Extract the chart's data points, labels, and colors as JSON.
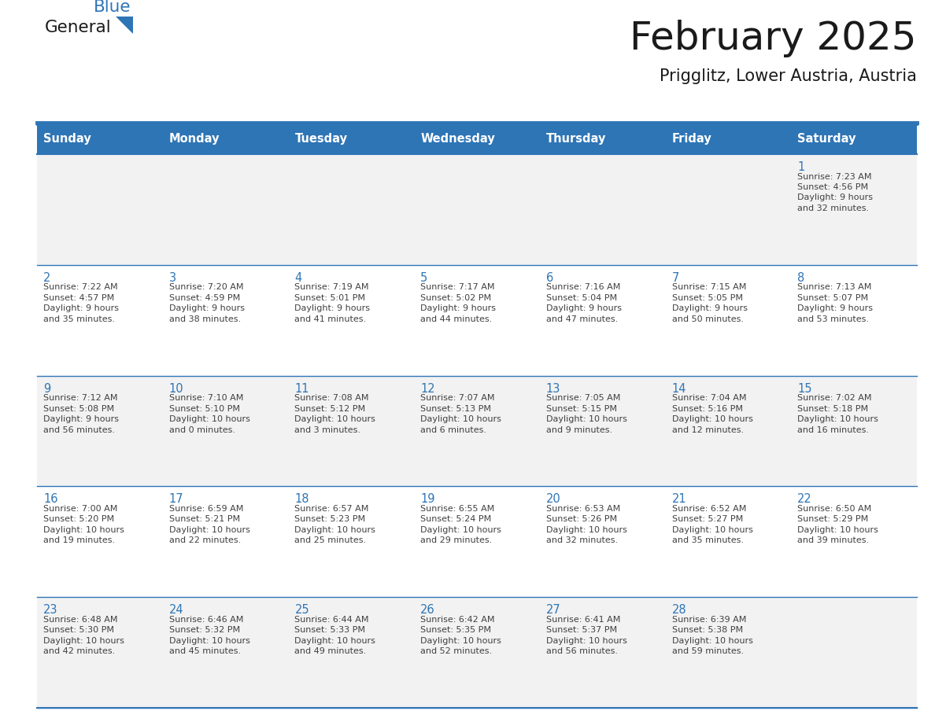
{
  "title": "February 2025",
  "subtitle": "Prigglitz, Lower Austria, Austria",
  "days_of_week": [
    "Sunday",
    "Monday",
    "Tuesday",
    "Wednesday",
    "Thursday",
    "Friday",
    "Saturday"
  ],
  "header_bg": "#2E75B6",
  "header_text_color": "#FFFFFF",
  "row_colors": [
    "#F2F2F2",
    "#FFFFFF"
  ],
  "border_color": "#2E75B6",
  "text_color": "#404040",
  "day_number_color": "#2E75B6",
  "background_color": "#FFFFFF",
  "logo_general_color": "#1a1a1a",
  "logo_blue_color": "#2E75B6",
  "calendar_data": [
    {
      "day": 1,
      "col": 6,
      "row": 0,
      "sunrise": "7:23 AM",
      "sunset": "4:56 PM",
      "daylight_hours": 9,
      "daylight_minutes": 32
    },
    {
      "day": 2,
      "col": 0,
      "row": 1,
      "sunrise": "7:22 AM",
      "sunset": "4:57 PM",
      "daylight_hours": 9,
      "daylight_minutes": 35
    },
    {
      "day": 3,
      "col": 1,
      "row": 1,
      "sunrise": "7:20 AM",
      "sunset": "4:59 PM",
      "daylight_hours": 9,
      "daylight_minutes": 38
    },
    {
      "day": 4,
      "col": 2,
      "row": 1,
      "sunrise": "7:19 AM",
      "sunset": "5:01 PM",
      "daylight_hours": 9,
      "daylight_minutes": 41
    },
    {
      "day": 5,
      "col": 3,
      "row": 1,
      "sunrise": "7:17 AM",
      "sunset": "5:02 PM",
      "daylight_hours": 9,
      "daylight_minutes": 44
    },
    {
      "day": 6,
      "col": 4,
      "row": 1,
      "sunrise": "7:16 AM",
      "sunset": "5:04 PM",
      "daylight_hours": 9,
      "daylight_minutes": 47
    },
    {
      "day": 7,
      "col": 5,
      "row": 1,
      "sunrise": "7:15 AM",
      "sunset": "5:05 PM",
      "daylight_hours": 9,
      "daylight_minutes": 50
    },
    {
      "day": 8,
      "col": 6,
      "row": 1,
      "sunrise": "7:13 AM",
      "sunset": "5:07 PM",
      "daylight_hours": 9,
      "daylight_minutes": 53
    },
    {
      "day": 9,
      "col": 0,
      "row": 2,
      "sunrise": "7:12 AM",
      "sunset": "5:08 PM",
      "daylight_hours": 9,
      "daylight_minutes": 56
    },
    {
      "day": 10,
      "col": 1,
      "row": 2,
      "sunrise": "7:10 AM",
      "sunset": "5:10 PM",
      "daylight_hours": 10,
      "daylight_minutes": 0
    },
    {
      "day": 11,
      "col": 2,
      "row": 2,
      "sunrise": "7:08 AM",
      "sunset": "5:12 PM",
      "daylight_hours": 10,
      "daylight_minutes": 3
    },
    {
      "day": 12,
      "col": 3,
      "row": 2,
      "sunrise": "7:07 AM",
      "sunset": "5:13 PM",
      "daylight_hours": 10,
      "daylight_minutes": 6
    },
    {
      "day": 13,
      "col": 4,
      "row": 2,
      "sunrise": "7:05 AM",
      "sunset": "5:15 PM",
      "daylight_hours": 10,
      "daylight_minutes": 9
    },
    {
      "day": 14,
      "col": 5,
      "row": 2,
      "sunrise": "7:04 AM",
      "sunset": "5:16 PM",
      "daylight_hours": 10,
      "daylight_minutes": 12
    },
    {
      "day": 15,
      "col": 6,
      "row": 2,
      "sunrise": "7:02 AM",
      "sunset": "5:18 PM",
      "daylight_hours": 10,
      "daylight_minutes": 16
    },
    {
      "day": 16,
      "col": 0,
      "row": 3,
      "sunrise": "7:00 AM",
      "sunset": "5:20 PM",
      "daylight_hours": 10,
      "daylight_minutes": 19
    },
    {
      "day": 17,
      "col": 1,
      "row": 3,
      "sunrise": "6:59 AM",
      "sunset": "5:21 PM",
      "daylight_hours": 10,
      "daylight_minutes": 22
    },
    {
      "day": 18,
      "col": 2,
      "row": 3,
      "sunrise": "6:57 AM",
      "sunset": "5:23 PM",
      "daylight_hours": 10,
      "daylight_minutes": 25
    },
    {
      "day": 19,
      "col": 3,
      "row": 3,
      "sunrise": "6:55 AM",
      "sunset": "5:24 PM",
      "daylight_hours": 10,
      "daylight_minutes": 29
    },
    {
      "day": 20,
      "col": 4,
      "row": 3,
      "sunrise": "6:53 AM",
      "sunset": "5:26 PM",
      "daylight_hours": 10,
      "daylight_minutes": 32
    },
    {
      "day": 21,
      "col": 5,
      "row": 3,
      "sunrise": "6:52 AM",
      "sunset": "5:27 PM",
      "daylight_hours": 10,
      "daylight_minutes": 35
    },
    {
      "day": 22,
      "col": 6,
      "row": 3,
      "sunrise": "6:50 AM",
      "sunset": "5:29 PM",
      "daylight_hours": 10,
      "daylight_minutes": 39
    },
    {
      "day": 23,
      "col": 0,
      "row": 4,
      "sunrise": "6:48 AM",
      "sunset": "5:30 PM",
      "daylight_hours": 10,
      "daylight_minutes": 42
    },
    {
      "day": 24,
      "col": 1,
      "row": 4,
      "sunrise": "6:46 AM",
      "sunset": "5:32 PM",
      "daylight_hours": 10,
      "daylight_minutes": 45
    },
    {
      "day": 25,
      "col": 2,
      "row": 4,
      "sunrise": "6:44 AM",
      "sunset": "5:33 PM",
      "daylight_hours": 10,
      "daylight_minutes": 49
    },
    {
      "day": 26,
      "col": 3,
      "row": 4,
      "sunrise": "6:42 AM",
      "sunset": "5:35 PM",
      "daylight_hours": 10,
      "daylight_minutes": 52
    },
    {
      "day": 27,
      "col": 4,
      "row": 4,
      "sunrise": "6:41 AM",
      "sunset": "5:37 PM",
      "daylight_hours": 10,
      "daylight_minutes": 56
    },
    {
      "day": 28,
      "col": 5,
      "row": 4,
      "sunrise": "6:39 AM",
      "sunset": "5:38 PM",
      "daylight_hours": 10,
      "daylight_minutes": 59
    }
  ]
}
